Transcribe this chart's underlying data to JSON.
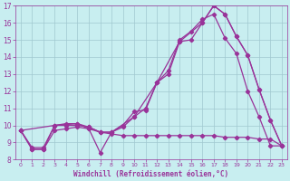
{
  "background_color": "#c8eef0",
  "grid_color": "#a0c8d0",
  "line_color": "#993399",
  "xlabel": "Windchill (Refroidissement éolien,°C)",
  "xlim": [
    -0.5,
    23.5
  ],
  "ylim": [
    8,
    17
  ],
  "yticks": [
    8,
    9,
    10,
    11,
    12,
    13,
    14,
    15,
    16,
    17
  ],
  "xticks": [
    0,
    1,
    2,
    3,
    4,
    5,
    6,
    7,
    8,
    9,
    10,
    11,
    12,
    13,
    14,
    15,
    16,
    17,
    18,
    19,
    20,
    21,
    22,
    23
  ],
  "line1_x": [
    0,
    1,
    2,
    3,
    4,
    5,
    6,
    7,
    8,
    9,
    10,
    11,
    12,
    13,
    14,
    15,
    16,
    17,
    18,
    19,
    20,
    21,
    22,
    23
  ],
  "line1_y": [
    9.7,
    8.6,
    8.6,
    10.0,
    10.1,
    10.1,
    9.8,
    8.4,
    9.6,
    10.0,
    10.8,
    10.9,
    12.5,
    13.0,
    14.9,
    15.0,
    16.0,
    17.0,
    16.5,
    15.2,
    14.1,
    12.1,
    10.3,
    8.8
  ],
  "line2_x": [
    0,
    1,
    2,
    3,
    4,
    5,
    6,
    7,
    8,
    9,
    10,
    11,
    12,
    13,
    14,
    15,
    16,
    17,
    18,
    19,
    20,
    21,
    22,
    23
  ],
  "line2_y": [
    9.7,
    8.7,
    8.7,
    10.0,
    10.0,
    10.0,
    9.9,
    9.6,
    9.6,
    9.9,
    10.5,
    11.0,
    12.5,
    13.2,
    15.0,
    15.5,
    16.2,
    16.5,
    15.1,
    14.2,
    12.0,
    10.5,
    8.8,
    8.8
  ],
  "line3_x": [
    0,
    3,
    5,
    6,
    7,
    8,
    10,
    12,
    14,
    16,
    17,
    18,
    19,
    20,
    21,
    22,
    23
  ],
  "line3_y": [
    9.7,
    10.0,
    10.1,
    9.9,
    9.6,
    9.6,
    10.5,
    12.5,
    14.9,
    16.0,
    17.0,
    16.5,
    15.2,
    14.1,
    12.1,
    10.3,
    8.8
  ],
  "line4_x": [
    0,
    1,
    2,
    3,
    4,
    5,
    6,
    7,
    8,
    9,
    10,
    11,
    12,
    13,
    14,
    15,
    16,
    17,
    18,
    19,
    20,
    21,
    22,
    23
  ],
  "line4_y": [
    9.7,
    8.6,
    8.6,
    9.7,
    9.8,
    9.9,
    9.8,
    9.6,
    9.5,
    9.4,
    9.4,
    9.4,
    9.4,
    9.4,
    9.4,
    9.4,
    9.4,
    9.4,
    9.3,
    9.3,
    9.3,
    9.2,
    9.2,
    8.8
  ]
}
